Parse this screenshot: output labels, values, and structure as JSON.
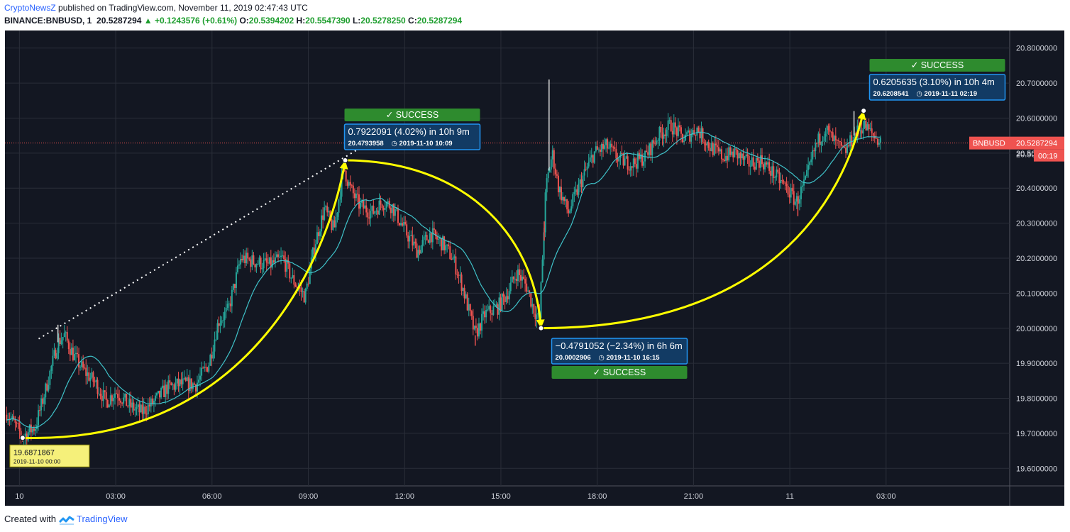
{
  "header": {
    "author": "CryptoNewsZ",
    "published": "published on TradingView.com, November 11, 2019 02:47:43 UTC",
    "symbol": "BINANCE:BNBUSD, 1",
    "last": "20.5287294",
    "change": "+0.1243576 (+0.61%)",
    "open_label": "O:",
    "open": "20.5394202",
    "high_label": "H:",
    "high": "20.5547390",
    "low_label": "L:",
    "low": "20.5278250",
    "close_label": "C:",
    "close": "20.5287294"
  },
  "footer": {
    "created": "Created with",
    "brand": "TradingView"
  },
  "colors": {
    "background": "#131722",
    "up": "#26a69a",
    "down": "#ef5350",
    "ma": "#3fc2c9",
    "arc": "#ffff00",
    "success": "#2e8b2e",
    "info_border": "#2196f3",
    "info_fill": "#123b64",
    "price_line": "#ef5350"
  },
  "chart_data": {
    "type": "candlestick",
    "ylim": [
      19.55,
      20.85
    ],
    "y_ticks": [
      "20.8000000",
      "20.7000000",
      "20.6000000",
      "20.5000000",
      "20.4000000",
      "20.3000000",
      "20.2000000",
      "20.1000000",
      "20.0000000",
      "19.9000000",
      "19.8000000",
      "19.7000000",
      "19.6000000"
    ],
    "y_tick_values": [
      20.8,
      20.7,
      20.6,
      20.5,
      20.4,
      20.3,
      20.2,
      20.1,
      20.0,
      19.9,
      19.8,
      19.7,
      19.6
    ],
    "x_range_hours": [
      -0.45,
      30.85
    ],
    "x_ticks": [
      "10",
      "03:00",
      "06:00",
      "09:00",
      "12:00",
      "15:00",
      "18:00",
      "21:00",
      "11",
      "03:00"
    ],
    "x_tick_hours": [
      0,
      3,
      6,
      9,
      12,
      15,
      18,
      21,
      24,
      27
    ],
    "price_anchors": [
      [
        -0.4,
        19.76
      ],
      [
        0.1,
        19.69
      ],
      [
        0.5,
        19.72
      ],
      [
        0.8,
        19.82
      ],
      [
        1.2,
        19.96
      ],
      [
        1.4,
        19.98
      ],
      [
        1.7,
        19.92
      ],
      [
        2.0,
        19.88
      ],
      [
        2.4,
        19.84
      ],
      [
        2.7,
        19.79
      ],
      [
        3.0,
        19.82
      ],
      [
        3.4,
        19.78
      ],
      [
        3.8,
        19.76
      ],
      [
        4.2,
        19.79
      ],
      [
        4.6,
        19.83
      ],
      [
        5.0,
        19.84
      ],
      [
        5.5,
        19.84
      ],
      [
        5.9,
        19.9
      ],
      [
        6.2,
        20.02
      ],
      [
        6.5,
        20.05
      ],
      [
        6.9,
        20.2
      ],
      [
        7.3,
        20.19
      ],
      [
        7.8,
        20.18
      ],
      [
        8.2,
        20.2
      ],
      [
        8.5,
        20.14
      ],
      [
        8.9,
        20.09
      ],
      [
        9.2,
        20.24
      ],
      [
        9.5,
        20.34
      ],
      [
        9.8,
        20.28
      ],
      [
        10.1,
        20.46
      ],
      [
        10.3,
        20.4
      ],
      [
        10.6,
        20.35
      ],
      [
        11.0,
        20.33
      ],
      [
        11.3,
        20.36
      ],
      [
        11.6,
        20.35
      ],
      [
        12.0,
        20.28
      ],
      [
        12.4,
        20.22
      ],
      [
        12.8,
        20.27
      ],
      [
        13.2,
        20.24
      ],
      [
        13.5,
        20.2
      ],
      [
        13.8,
        20.12
      ],
      [
        14.0,
        20.05
      ],
      [
        14.2,
        19.98
      ],
      [
        14.5,
        20.04
      ],
      [
        14.9,
        20.06
      ],
      [
        15.2,
        20.1
      ],
      [
        15.5,
        20.16
      ],
      [
        15.8,
        20.12
      ],
      [
        16.0,
        20.06
      ],
      [
        16.2,
        20.02
      ],
      [
        16.4,
        20.4
      ],
      [
        16.6,
        20.5
      ],
      [
        16.8,
        20.4
      ],
      [
        17.1,
        20.33
      ],
      [
        17.5,
        20.42
      ],
      [
        17.9,
        20.5
      ],
      [
        18.3,
        20.52
      ],
      [
        18.7,
        20.48
      ],
      [
        19.1,
        20.47
      ],
      [
        19.5,
        20.49
      ],
      [
        19.9,
        20.55
      ],
      [
        20.3,
        20.58
      ],
      [
        20.7,
        20.54
      ],
      [
        21.1,
        20.57
      ],
      [
        21.5,
        20.52
      ],
      [
        21.9,
        20.49
      ],
      [
        22.3,
        20.5
      ],
      [
        22.7,
        20.47
      ],
      [
        23.1,
        20.48
      ],
      [
        23.5,
        20.44
      ],
      [
        23.9,
        20.4
      ],
      [
        24.2,
        20.36
      ],
      [
        24.5,
        20.42
      ],
      [
        24.8,
        20.52
      ],
      [
        25.1,
        20.57
      ],
      [
        25.4,
        20.53
      ],
      [
        25.7,
        20.5
      ],
      [
        26.0,
        20.55
      ],
      [
        26.3,
        20.58
      ],
      [
        26.6,
        20.55
      ],
      [
        26.85,
        20.53
      ]
    ],
    "spikes": [
      {
        "h": 1.2,
        "v": 20.01
      },
      {
        "h": 14.2,
        "v": 19.95
      },
      {
        "h": 16.5,
        "v": 20.71
      },
      {
        "h": 16.35,
        "v": 20.25
      },
      {
        "h": 24.25,
        "v": 20.32
      },
      {
        "h": 26.0,
        "v": 20.62
      }
    ],
    "current_price": 20.5287294,
    "price_label": "BNBUSD",
    "price_value": "20.5287294",
    "countdown": "00:19",
    "countdown_partial": "20.50",
    "points": [
      {
        "h": 0.1,
        "v": 19.6871867,
        "price": "19.6871867",
        "time": "2019-11-10 00:00"
      },
      {
        "h": 10.15,
        "v": 20.4793958,
        "price": "20.4793958",
        "time": "2019-11-10  10:09"
      },
      {
        "h": 16.25,
        "v": 20.0002906,
        "price": "20.0002906",
        "time": "2019-11-10  16:15"
      },
      {
        "h": 26.3,
        "v": 20.6208541,
        "price": "20.6208541",
        "time": "2019-11-11  02:19"
      }
    ],
    "trend_line": {
      "from": {
        "h": 0.6,
        "v": 19.97
      },
      "to": {
        "h": 10.9,
        "v": 20.53
      }
    },
    "moves": [
      {
        "text": "0.7922091 (4.02%) in 10h 9m",
        "price": "20.4793958",
        "time": "2019-11-10  10:09",
        "status": "✓ SUCCESS"
      },
      {
        "text": "−0.4791052 (−2.34%) in 6h 6m",
        "price": "20.0002906",
        "time": "2019-11-10  16:15",
        "status": "✓ SUCCESS"
      },
      {
        "text": "0.6205635 (3.10%) in 10h 4m",
        "price": "20.6208541",
        "time": "2019-11-11  02:19",
        "status": "✓ SUCCESS"
      }
    ]
  }
}
